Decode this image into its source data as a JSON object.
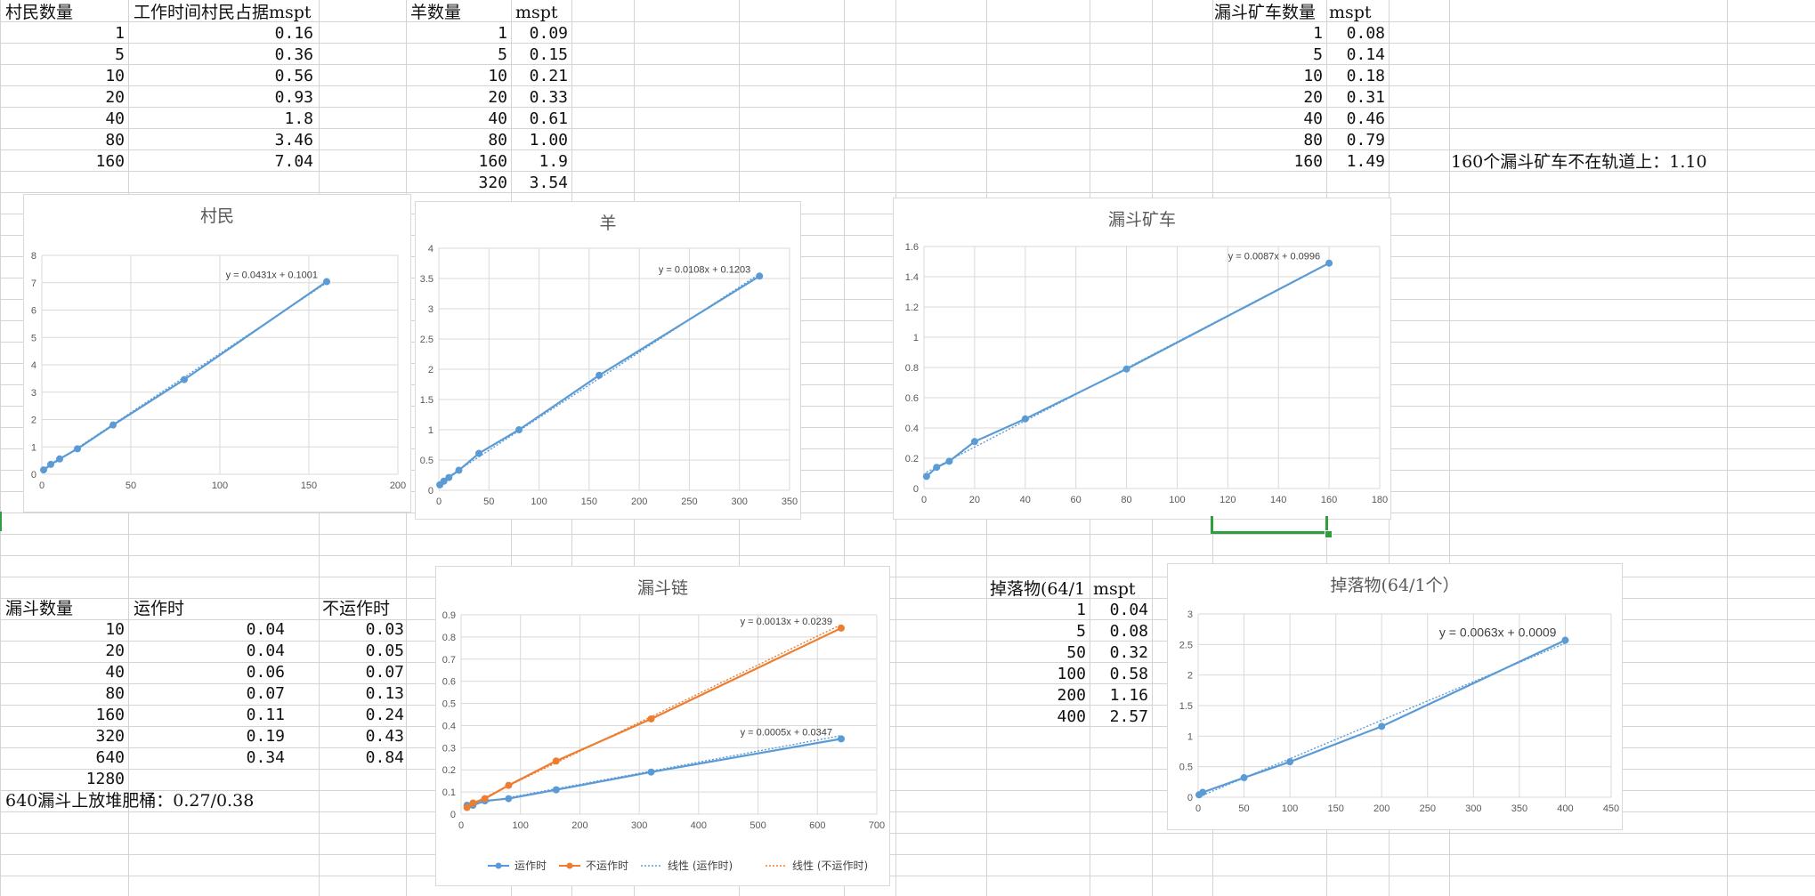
{
  "tables": {
    "villager": {
      "headers": [
        "村民数量",
        "工作时间村民占据mspt"
      ],
      "rows": [
        [
          "1",
          "0.16"
        ],
        [
          "5",
          "0.36"
        ],
        [
          "10",
          "0.56"
        ],
        [
          "20",
          "0.93"
        ],
        [
          "40",
          "1.8"
        ],
        [
          "80",
          "3.46"
        ],
        [
          "160",
          "7.04"
        ]
      ]
    },
    "sheep": {
      "headers": [
        "羊数量",
        "mspt"
      ],
      "rows": [
        [
          "1",
          "0.09"
        ],
        [
          "5",
          "0.15"
        ],
        [
          "10",
          "0.21"
        ],
        [
          "20",
          "0.33"
        ],
        [
          "40",
          "0.61"
        ],
        [
          "80",
          "1.00"
        ],
        [
          "160",
          "1.9"
        ],
        [
          "320",
          "3.54"
        ]
      ]
    },
    "minecart": {
      "headers": [
        "漏斗矿车数量",
        "mspt"
      ],
      "rows": [
        [
          "1",
          "0.08"
        ],
        [
          "5",
          "0.14"
        ],
        [
          "10",
          "0.18"
        ],
        [
          "20",
          "0.31"
        ],
        [
          "40",
          "0.46"
        ],
        [
          "80",
          "0.79"
        ],
        [
          "160",
          "1.49"
        ]
      ],
      "note": "160个漏斗矿车不在轨道上：1.10"
    },
    "hopper": {
      "headers": [
        "漏斗数量",
        "运作时",
        "不运作时"
      ],
      "rows": [
        [
          "10",
          "0.04",
          "0.03"
        ],
        [
          "20",
          "0.04",
          "0.05"
        ],
        [
          "40",
          "0.06",
          "0.07"
        ],
        [
          "80",
          "0.07",
          "0.13"
        ],
        [
          "160",
          "0.11",
          "0.24"
        ],
        [
          "320",
          "0.19",
          "0.43"
        ],
        [
          "640",
          "0.34",
          "0.84"
        ],
        [
          "1280",
          "",
          ""
        ]
      ],
      "note": "640漏斗上放堆肥桶：0.27/0.38"
    },
    "drops": {
      "headers": [
        "掉落物(64/1",
        "mspt"
      ],
      "rows": [
        [
          "1",
          "0.04"
        ],
        [
          "5",
          "0.08"
        ],
        [
          "50",
          "0.32"
        ],
        [
          "100",
          "0.58"
        ],
        [
          "200",
          "1.16"
        ],
        [
          "400",
          "2.57"
        ]
      ]
    }
  },
  "chart_data": [
    {
      "id": "villager",
      "type": "scatter",
      "title": "村民",
      "xlim": [
        0,
        200
      ],
      "xticks": [
        0,
        50,
        100,
        150,
        200
      ],
      "ylim": [
        0,
        8
      ],
      "yticks": [
        0,
        1,
        2,
        3,
        4,
        5,
        6,
        7,
        8
      ],
      "series": [
        {
          "x": [
            1,
            5,
            10,
            20,
            40,
            80,
            160
          ],
          "y": [
            0.16,
            0.36,
            0.56,
            0.93,
            1.8,
            3.46,
            7.04
          ],
          "color": "#5b9bd5",
          "trend": {
            "slope": 0.0431,
            "intercept": 0.1001,
            "label": "y = 0.0431x + 0.1001"
          }
        }
      ],
      "grid": true
    },
    {
      "id": "sheep",
      "type": "scatter",
      "title": "羊",
      "xlim": [
        0,
        350
      ],
      "xticks": [
        0,
        50,
        100,
        150,
        200,
        250,
        300,
        350
      ],
      "ylim": [
        0,
        4
      ],
      "yticks": [
        0,
        0.5,
        1,
        1.5,
        2,
        2.5,
        3,
        3.5,
        4
      ],
      "series": [
        {
          "x": [
            1,
            5,
            10,
            20,
            40,
            80,
            160,
            320
          ],
          "y": [
            0.09,
            0.15,
            0.21,
            0.33,
            0.61,
            1.0,
            1.9,
            3.54
          ],
          "color": "#5b9bd5",
          "trend": {
            "slope": 0.0108,
            "intercept": 0.1203,
            "label": "y = 0.0108x + 0.1203"
          }
        }
      ],
      "grid": true
    },
    {
      "id": "minecart",
      "type": "scatter",
      "title": "漏斗矿车",
      "xlim": [
        0,
        180
      ],
      "xticks": [
        0,
        20,
        40,
        60,
        80,
        100,
        120,
        140,
        160,
        180
      ],
      "ylim": [
        0,
        1.6
      ],
      "yticks": [
        0,
        0.2,
        0.4,
        0.6,
        0.8,
        1,
        1.2,
        1.4,
        1.6
      ],
      "series": [
        {
          "x": [
            1,
            5,
            10,
            20,
            40,
            80,
            160
          ],
          "y": [
            0.08,
            0.14,
            0.18,
            0.31,
            0.46,
            0.79,
            1.49
          ],
          "color": "#5b9bd5",
          "trend": {
            "slope": 0.0087,
            "intercept": 0.0996,
            "label": "y = 0.0087x + 0.0996"
          }
        }
      ],
      "grid": true
    },
    {
      "id": "hopper",
      "type": "scatter",
      "title": "漏斗链",
      "xlim": [
        0,
        700
      ],
      "xticks": [
        0,
        100,
        200,
        300,
        400,
        500,
        600,
        700
      ],
      "ylim": [
        0,
        0.9
      ],
      "yticks": [
        0,
        0.1,
        0.2,
        0.3,
        0.4,
        0.5,
        0.6,
        0.7,
        0.8,
        0.9
      ],
      "series": [
        {
          "name": "运作时",
          "x": [
            10,
            20,
            40,
            80,
            160,
            320,
            640
          ],
          "y": [
            0.04,
            0.04,
            0.06,
            0.07,
            0.11,
            0.19,
            0.34
          ],
          "color": "#5b9bd5",
          "trend": {
            "slope": 0.0005,
            "intercept": 0.0347,
            "label": "y = 0.0005x + 0.0347",
            "name": "线性 (运作时)"
          }
        },
        {
          "name": "不运作时",
          "x": [
            10,
            20,
            40,
            80,
            160,
            320,
            640
          ],
          "y": [
            0.03,
            0.05,
            0.07,
            0.13,
            0.24,
            0.43,
            0.84
          ],
          "color": "#ed7d31",
          "trend": {
            "slope": 0.0013,
            "intercept": 0.0239,
            "label": "y = 0.0013x + 0.0239",
            "name": "线性 (不运作时)"
          }
        }
      ],
      "legend": "bottom",
      "grid": true
    },
    {
      "id": "drops",
      "type": "scatter",
      "title": "掉落物(64/1个）",
      "xlim": [
        0,
        450
      ],
      "xticks": [
        0,
        50,
        100,
        150,
        200,
        250,
        300,
        350,
        400,
        450
      ],
      "ylim": [
        0,
        3
      ],
      "yticks": [
        0,
        0.5,
        1,
        1.5,
        2,
        2.5,
        3
      ],
      "series": [
        {
          "x": [
            1,
            5,
            50,
            100,
            200,
            400
          ],
          "y": [
            0.04,
            0.08,
            0.32,
            0.58,
            1.16,
            2.57
          ],
          "color": "#5b9bd5",
          "trend": {
            "slope": 0.0063,
            "intercept": 0.0009,
            "label": "y = 0.0063x + 0.0009"
          }
        }
      ],
      "grid": true
    }
  ]
}
